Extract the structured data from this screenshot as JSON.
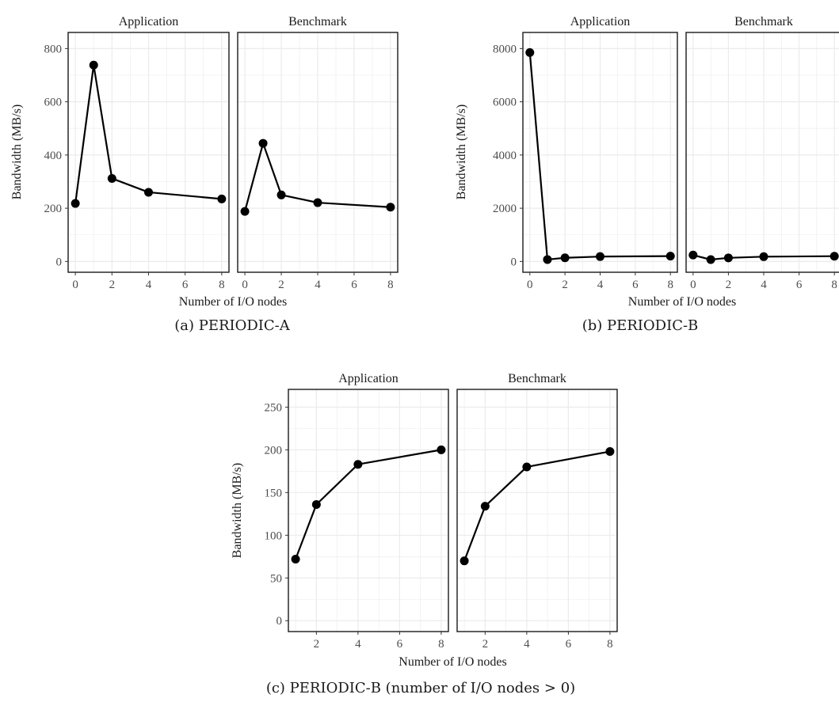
{
  "chart_data": [
    {
      "type": "line",
      "caption": "(a) PERIODIC-A",
      "xlabel": "Number of I/O nodes",
      "ylabel": "Bandwidth (MB/s)",
      "ylim": [
        0,
        820
      ],
      "xlim": [
        0,
        8
      ],
      "y_ticks": [
        0,
        200,
        400,
        600,
        800
      ],
      "x_ticks": [
        0,
        2,
        4,
        6,
        8
      ],
      "grid": true,
      "panels": [
        {
          "title": "Application",
          "x": [
            0,
            1,
            2,
            4,
            8
          ],
          "y": [
            218,
            738,
            312,
            260,
            235
          ]
        },
        {
          "title": "Benchmark",
          "x": [
            0,
            1,
            2,
            4,
            8
          ],
          "y": [
            188,
            444,
            250,
            221,
            204
          ]
        }
      ]
    },
    {
      "type": "line",
      "caption": "(b) PERIODIC-B",
      "xlabel": "Number of I/O nodes",
      "ylabel": "Bandwidth (MB/s)",
      "ylim": [
        0,
        8200
      ],
      "xlim": [
        0,
        8
      ],
      "y_ticks": [
        0,
        2000,
        4000,
        6000,
        8000
      ],
      "x_ticks": [
        0,
        2,
        4,
        6,
        8
      ],
      "grid": true,
      "panels": [
        {
          "title": "Application",
          "x": [
            0,
            1,
            2,
            4,
            8
          ],
          "y": [
            7850,
            72,
            137,
            184,
            200
          ]
        },
        {
          "title": "Benchmark",
          "x": [
            0,
            1,
            2,
            4,
            8
          ],
          "y": [
            240,
            70,
            135,
            180,
            198
          ]
        }
      ]
    },
    {
      "type": "line",
      "caption": "(c) PERIODIC-B (number of I/O nodes > 0)",
      "xlabel": "Number of I/O nodes",
      "ylabel": "Bandwidth (MB/s)",
      "ylim": [
        0,
        258
      ],
      "xlim": [
        1,
        8
      ],
      "y_ticks": [
        0,
        50,
        100,
        150,
        200,
        250
      ],
      "x_ticks": [
        2,
        4,
        6,
        8
      ],
      "grid": true,
      "panels": [
        {
          "title": "Application",
          "x": [
            1,
            2,
            4,
            8
          ],
          "y": [
            72,
            136,
            183,
            200
          ]
        },
        {
          "title": "Benchmark",
          "x": [
            1,
            2,
            4,
            8
          ],
          "y": [
            70,
            134,
            180,
            198
          ]
        }
      ]
    }
  ]
}
